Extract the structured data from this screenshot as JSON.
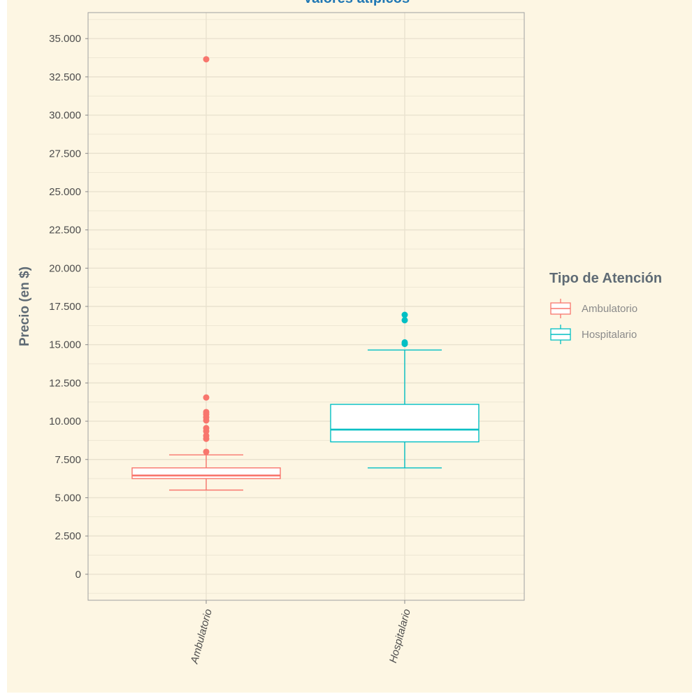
{
  "chart_data": {
    "type": "box",
    "title": "Valores atípicos",
    "xlabel": "",
    "ylabel": "Precio (en $)",
    "ylim": [
      -1700,
      36700
    ],
    "yticks": [
      0,
      2500,
      5000,
      7500,
      10000,
      12500,
      15000,
      17500,
      20000,
      22500,
      25000,
      27500,
      30000,
      32500,
      35000
    ],
    "ytick_labels": [
      "0",
      "2.500",
      "5.000",
      "7.500",
      "10.000",
      "12.500",
      "15.000",
      "17.500",
      "20.000",
      "22.500",
      "25.000",
      "27.500",
      "30.000",
      "32.500",
      "35.000"
    ],
    "categories": [
      "Ambulatorio",
      "Hospitalario"
    ],
    "grid": true,
    "legend": {
      "title": "Tipo de Atención",
      "position": "right",
      "entries": [
        "Ambulatorio",
        "Hospitalario"
      ]
    },
    "boxes": [
      {
        "category": "Ambulatorio",
        "color": "#f8766d",
        "whisker_low": 5500,
        "q1": 6250,
        "median": 6450,
        "q3": 6950,
        "whisker_high": 7800,
        "outliers": [
          8000,
          8850,
          9050,
          9350,
          9550,
          10050,
          10250,
          10450,
          10600,
          11550,
          33650
        ]
      },
      {
        "category": "Hospitalario",
        "color": "#00bfc4",
        "whisker_low": 6950,
        "q1": 8650,
        "median": 9450,
        "q3": 11100,
        "whisker_high": 14650,
        "outliers": [
          15050,
          15150,
          16600,
          16950
        ]
      }
    ]
  },
  "colors": {
    "background": "#fdf6e3",
    "panel_border": "#a0a0a0",
    "grid": "#e9e2cf"
  }
}
